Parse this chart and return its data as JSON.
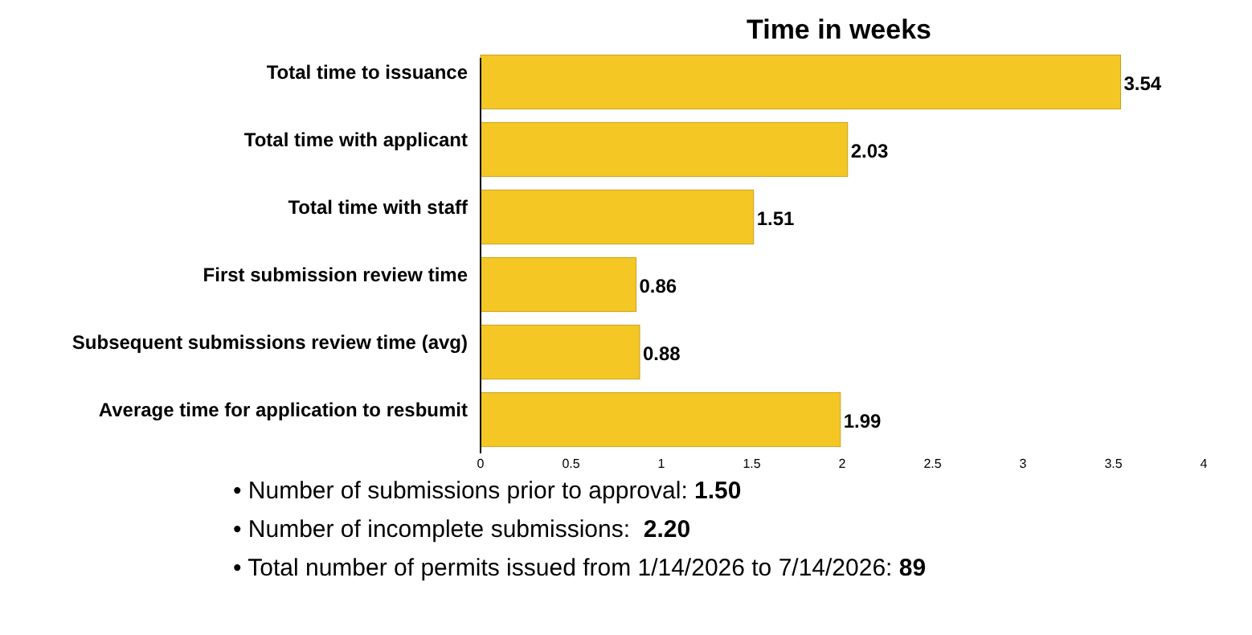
{
  "chart_data": {
    "type": "bar",
    "orientation": "horizontal",
    "title": "Time in weeks",
    "categories": [
      "Total time to issuance",
      "Total time with applicant",
      "Total time with staff",
      "First submission review time",
      "Subsequent submissions review time (avg)",
      "Average time for application to resbumit"
    ],
    "values": [
      3.54,
      2.03,
      1.51,
      0.86,
      0.88,
      1.99
    ],
    "color": "#f4c725",
    "data_labels": true,
    "xlim": [
      0,
      4
    ],
    "xticks": [
      0,
      0.5,
      1,
      1.5,
      2,
      2.5,
      3,
      3.5,
      4
    ],
    "grid": false,
    "annotations": [
      "• Number of submissions prior to approval: 1.50",
      "• Number of incomplete submissions:  2.20",
      "• Total number of permits issued from 1/14/2026 to 7/14/2026: 89"
    ]
  }
}
